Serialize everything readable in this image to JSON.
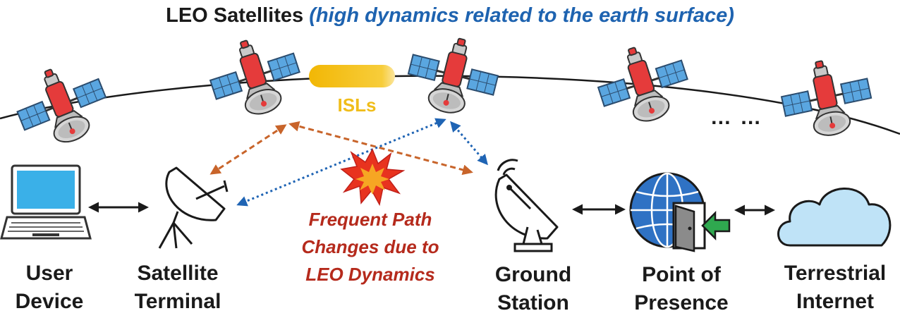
{
  "title": {
    "main": "LEO Satellites",
    "sub": "(high dynamics related to the earth surface)"
  },
  "isl_label": "ISLs",
  "ellipsis": "… …",
  "event": {
    "lines": [
      "Frequent Path",
      "Changes due to",
      "LEO Dynamics"
    ]
  },
  "nodes": {
    "user_device": [
      "User",
      "Device"
    ],
    "satellite_terminal": [
      "Satellite",
      "Terminal"
    ],
    "ground_station": [
      "Ground",
      "Station"
    ],
    "point_of_presence": [
      "Point of",
      "Presence"
    ],
    "terrestrial_internet": [
      "Terrestrial",
      "Internet"
    ]
  },
  "colors": {
    "title_sub": "#1e63b0",
    "isl": "#f0bd1a",
    "event_text": "#b52a1c",
    "orange_link": "#c8642a",
    "blue_link": "#1f64b4",
    "satellite_body": "#e53b3b",
    "solar_panel": "#5aa6e0",
    "cloud": "#bfe3f7",
    "globe": "#2f72c4",
    "door_arrow": "#2fa84f",
    "laptop_screen": "#3ab0e8"
  }
}
